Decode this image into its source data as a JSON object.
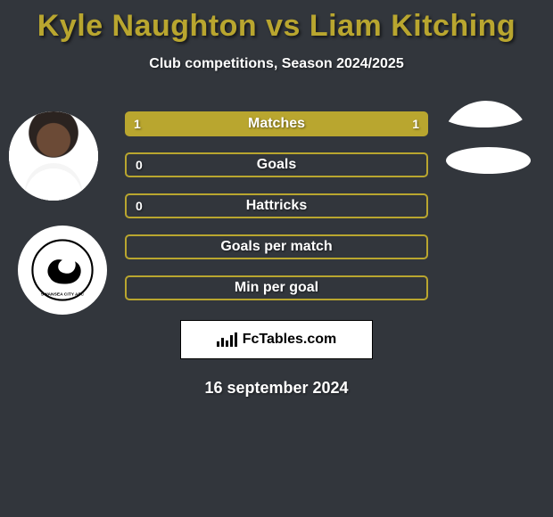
{
  "title_color": "#b9a62f",
  "title_before": "Kyle Naughton",
  "title_vs": " vs ",
  "title_after": "Liam Kitching",
  "subtitle": "Club competitions, Season 2024/2025",
  "row_colors": {
    "fill": "#b9a62f",
    "border": "#b9a62f",
    "border_only_bg": "transparent"
  },
  "rows": [
    {
      "label": "Matches",
      "left": "1",
      "right": "1",
      "style": "filled"
    },
    {
      "label": "Goals",
      "left": "0",
      "right": "",
      "style": "outlined"
    },
    {
      "label": "Hattricks",
      "left": "0",
      "right": "",
      "style": "outlined"
    },
    {
      "label": "Goals per match",
      "left": "",
      "right": "",
      "style": "outlined"
    },
    {
      "label": "Min per goal",
      "left": "",
      "right": "",
      "style": "outlined"
    }
  ],
  "brand": "FcTables.com",
  "date": "16 september 2024",
  "left_player_name": "kyle-naughton",
  "right_player_name": "liam-kitching",
  "left_club_name": "swansea-city"
}
